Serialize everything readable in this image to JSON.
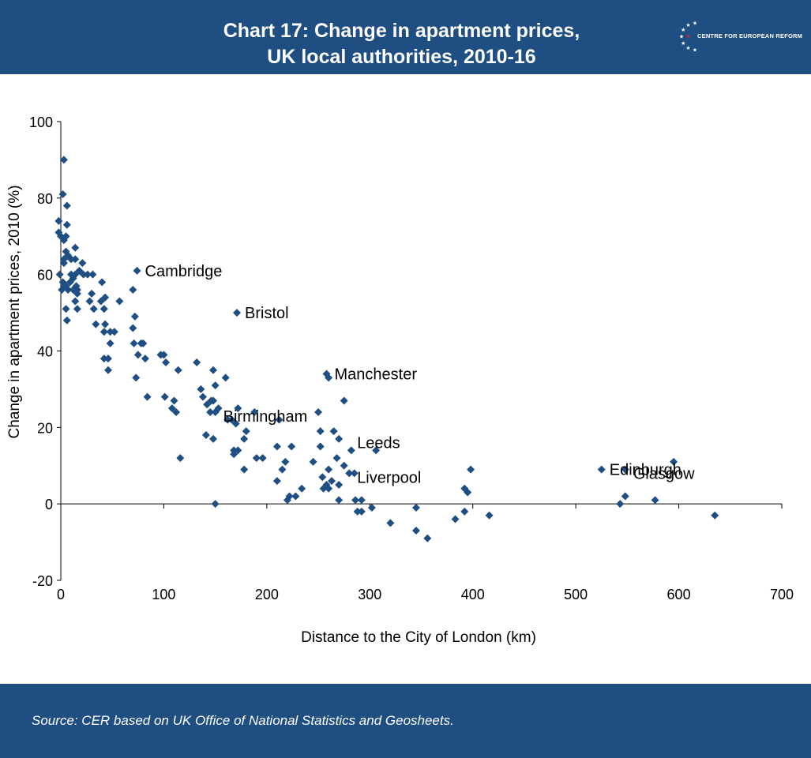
{
  "header": {
    "title_line1": "Chart 17: Change in apartment prices,",
    "title_line2": "UK local authorities, 2010-16",
    "logo_text": "CENTRE FOR EUROPEAN REFORM"
  },
  "footer": {
    "source": "Source:  CER based on UK Office of National Statistics and Geosheets."
  },
  "colors": {
    "brand_blue": "#1f4e82",
    "marker": "#1f4e82",
    "axis": "#000000",
    "logo_star": "#ffffff",
    "logo_accent": "#e8262b"
  },
  "chart_data": {
    "type": "scatter",
    "xlabel": "Distance to the City of London (km)",
    "ylabel": "Change in apartment prices, 2010 (%)",
    "xlim": [
      0,
      700
    ],
    "ylim": [
      -20,
      100
    ],
    "xticks": [
      0,
      100,
      200,
      300,
      400,
      500,
      600,
      700
    ],
    "yticks": [
      -20,
      0,
      20,
      40,
      60,
      80,
      100
    ],
    "grid": false,
    "labels": [
      {
        "text": "Cambridge",
        "x": 74,
        "y": 61
      },
      {
        "text": "Bristol",
        "x": 171,
        "y": 50
      },
      {
        "text": "Manchester",
        "x": 258,
        "y": 34
      },
      {
        "text": "Birmingham",
        "x": 150,
        "y": 23
      },
      {
        "text": "Leeds",
        "x": 280,
        "y": 16
      },
      {
        "text": "Liverpool",
        "x": 280,
        "y": 7
      },
      {
        "text": "Edinburgh",
        "x": 525,
        "y": 9
      },
      {
        "text": "Glasgow",
        "x": 548,
        "y": 8
      }
    ],
    "points": [
      [
        3,
        90
      ],
      [
        2,
        81
      ],
      [
        6,
        78
      ],
      [
        -2,
        74
      ],
      [
        6,
        73
      ],
      [
        -2,
        71
      ],
      [
        0,
        70
      ],
      [
        3,
        69
      ],
      [
        5,
        70
      ],
      [
        5,
        66
      ],
      [
        3,
        64
      ],
      [
        7,
        65
      ],
      [
        3,
        63
      ],
      [
        14,
        67
      ],
      [
        10,
        64
      ],
      [
        14,
        64
      ],
      [
        21,
        63
      ],
      [
        -1,
        60
      ],
      [
        10,
        60
      ],
      [
        14,
        60
      ],
      [
        18,
        61
      ],
      [
        26,
        60
      ],
      [
        31,
        60
      ],
      [
        2,
        58
      ],
      [
        5,
        57
      ],
      [
        9,
        58
      ],
      [
        12,
        59
      ],
      [
        15,
        57
      ],
      [
        1,
        56
      ],
      [
        4,
        57
      ],
      [
        7,
        56
      ],
      [
        12,
        56
      ],
      [
        16,
        56
      ],
      [
        16,
        55
      ],
      [
        22,
        60
      ],
      [
        40,
        58
      ],
      [
        30,
        55
      ],
      [
        28,
        53
      ],
      [
        14,
        53
      ],
      [
        39,
        53
      ],
      [
        43,
        54
      ],
      [
        57,
        53
      ],
      [
        5,
        51
      ],
      [
        16,
        51
      ],
      [
        32,
        51
      ],
      [
        42,
        51
      ],
      [
        6,
        48
      ],
      [
        34,
        47
      ],
      [
        43,
        47
      ],
      [
        42,
        45
      ],
      [
        48,
        45
      ],
      [
        52,
        45
      ],
      [
        72,
        49
      ],
      [
        70,
        46
      ],
      [
        70,
        56
      ],
      [
        74,
        61
      ],
      [
        48,
        42
      ],
      [
        71,
        42
      ],
      [
        78,
        42
      ],
      [
        80,
        42
      ],
      [
        42,
        38
      ],
      [
        46,
        38
      ],
      [
        75,
        39
      ],
      [
        82,
        38
      ],
      [
        97,
        39
      ],
      [
        100,
        39
      ],
      [
        102,
        37
      ],
      [
        46,
        35
      ],
      [
        73,
        33
      ],
      [
        84,
        28
      ],
      [
        101,
        28
      ],
      [
        110,
        27
      ],
      [
        112,
        24
      ],
      [
        108,
        25
      ],
      [
        114,
        35
      ],
      [
        132,
        37
      ],
      [
        136,
        30
      ],
      [
        138,
        28
      ],
      [
        146,
        27
      ],
      [
        142,
        26
      ],
      [
        148,
        27
      ],
      [
        153,
        25
      ],
      [
        145,
        24
      ],
      [
        150,
        24
      ],
      [
        148,
        35
      ],
      [
        150,
        31
      ],
      [
        160,
        33
      ],
      [
        171,
        50
      ],
      [
        162,
        22
      ],
      [
        166,
        22
      ],
      [
        170,
        21
      ],
      [
        172,
        25
      ],
      [
        148,
        17
      ],
      [
        141,
        18
      ],
      [
        180,
        19
      ],
      [
        178,
        17
      ],
      [
        168,
        14
      ],
      [
        172,
        14
      ],
      [
        168,
        13
      ],
      [
        178,
        9
      ],
      [
        188,
        24
      ],
      [
        212,
        22
      ],
      [
        210,
        15
      ],
      [
        224,
        15
      ],
      [
        190,
        12
      ],
      [
        196,
        12
      ],
      [
        218,
        11
      ],
      [
        215,
        9
      ],
      [
        210,
        6
      ],
      [
        234,
        4
      ],
      [
        245,
        11
      ],
      [
        222,
        2
      ],
      [
        228,
        2
      ],
      [
        220,
        1
      ],
      [
        116,
        12
      ],
      [
        150,
        0
      ],
      [
        258,
        34
      ],
      [
        260,
        33
      ],
      [
        275,
        27
      ],
      [
        250,
        24
      ],
      [
        252,
        19
      ],
      [
        265,
        19
      ],
      [
        270,
        17
      ],
      [
        252,
        15
      ],
      [
        282,
        14
      ],
      [
        306,
        14
      ],
      [
        268,
        12
      ],
      [
        275,
        10
      ],
      [
        280,
        8
      ],
      [
        285,
        8
      ],
      [
        260,
        9
      ],
      [
        254,
        7
      ],
      [
        263,
        6
      ],
      [
        270,
        5
      ],
      [
        258,
        5
      ],
      [
        255,
        4
      ],
      [
        260,
        4
      ],
      [
        270,
        1
      ],
      [
        286,
        1
      ],
      [
        292,
        1
      ],
      [
        302,
        -1
      ],
      [
        288,
        -2
      ],
      [
        292,
        -2
      ],
      [
        320,
        -5
      ],
      [
        345,
        -1
      ],
      [
        345,
        -7
      ],
      [
        356,
        -9
      ],
      [
        392,
        4
      ],
      [
        395,
        3
      ],
      [
        398,
        9
      ],
      [
        392,
        -2
      ],
      [
        383,
        -4
      ],
      [
        416,
        -3
      ],
      [
        525,
        9
      ],
      [
        548,
        9
      ],
      [
        595,
        11
      ],
      [
        548,
        2
      ],
      [
        543,
        0
      ],
      [
        577,
        1
      ],
      [
        635,
        -3
      ]
    ]
  }
}
